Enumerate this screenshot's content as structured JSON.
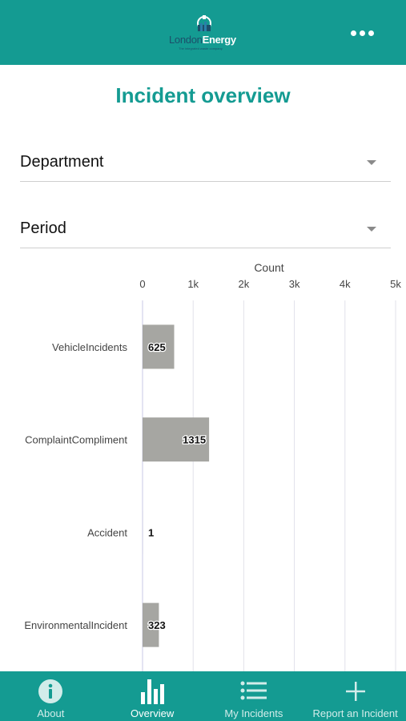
{
  "header": {
    "logo_word1": "London",
    "logo_word2": "Energy",
    "logo_tagline": "The integrated waste company"
  },
  "page": {
    "title": "Incident overview"
  },
  "filters": {
    "department_label": "Department",
    "period_label": "Period"
  },
  "chart_data": {
    "type": "bar",
    "orientation": "horizontal",
    "title": "",
    "xlabel": "Count",
    "ylabel": "",
    "xlim": [
      0,
      5000
    ],
    "x_ticks": [
      0,
      1000,
      2000,
      3000,
      4000,
      5000
    ],
    "x_tick_labels": [
      "0",
      "1k",
      "2k",
      "3k",
      "4k",
      "5k"
    ],
    "axis_position": "top",
    "grid": true,
    "categories": [
      "VehicleIncidents",
      "ComplaintCompliment",
      "Accident",
      "EnvironmentalIncident"
    ],
    "values": [
      625,
      1315,
      1,
      323
    ],
    "data_labels": [
      "625",
      "1315",
      "1",
      "323"
    ],
    "bar_color": "#a6a6a2",
    "grid_color": "#e2e2ea"
  },
  "tabs": [
    {
      "label": "About",
      "icon": "info-icon"
    },
    {
      "label": "Overview",
      "icon": "bar-chart-icon"
    },
    {
      "label": "My Incidents",
      "icon": "list-icon"
    },
    {
      "label": "Report an Incident",
      "icon": "plus-icon"
    }
  ],
  "colors": {
    "brand": "#149b92",
    "tab_inactive": "#d2ecea",
    "tab_active": "#ffffff"
  }
}
